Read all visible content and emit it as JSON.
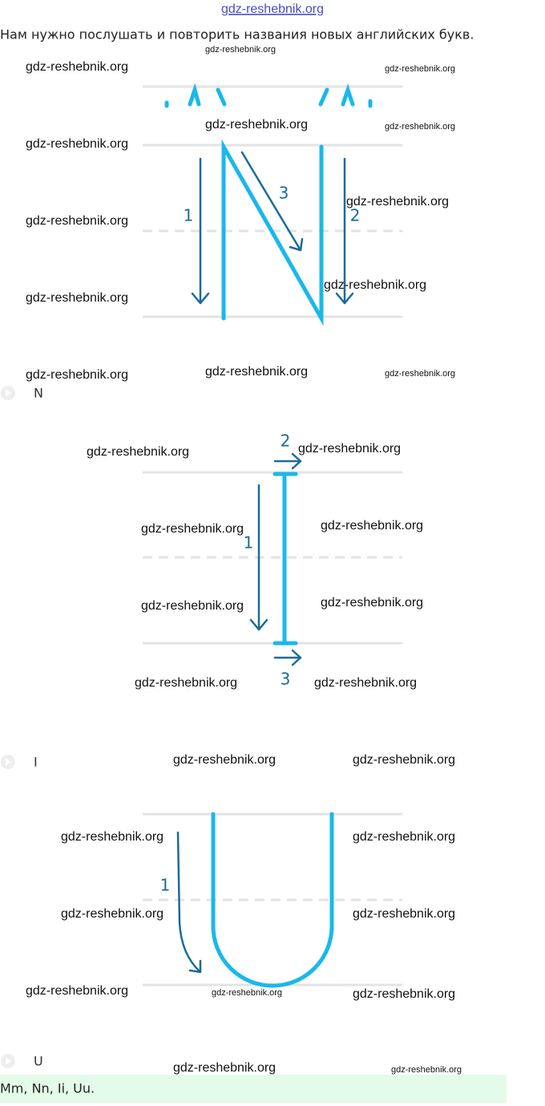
{
  "header": {
    "link": "gdz-reshebnik.org"
  },
  "instruction": "Нам нужно послушать и повторить названия новых английских букв.",
  "letters": [
    {
      "caption": "N",
      "steps": [
        "1",
        "2",
        "3"
      ]
    },
    {
      "caption": "I",
      "steps": [
        "1",
        "2",
        "3"
      ]
    },
    {
      "caption": "U",
      "steps": [
        "1"
      ]
    }
  ],
  "answer": "Mm, Nn, Ii, Uu.",
  "watermarks": [
    "gdz-reshebnik.org",
    "gdz-reshebnik.org",
    "gdz-reshebnik.org",
    "gdz-reshebnik.org",
    "gdz-reshebnik.org",
    "gdz-reshebnik.org",
    "gdz-reshebnik.org",
    "gdz-reshebnik.org",
    "gdz-reshebnik.org",
    "gdz-reshebnik.org",
    "gdz-reshebnik.org",
    "gdz-reshebnik.org",
    "gdz-reshebnik.org",
    "gdz-reshebnik.org",
    "gdz-reshebnik.org",
    "gdz-reshebnik.org",
    "gdz-reshebnik.org",
    "gdz-reshebnik.org",
    "gdz-reshebnik.org",
    "gdz-reshebnik.org",
    "gdz-reshebnik.org",
    "gdz-reshebnik.org",
    "gdz-reshebnik.org",
    "gdz-reshebnik.org",
    "gdz-reshebnik.org",
    "gdz-reshebnik.org",
    "gdz-reshebnik.org",
    "gdz-reshebnik.org",
    "gdz-reshebnik.org",
    "gdz-reshebnik.org",
    "gdz-reshebnik.org",
    "gdz-reshebnik.org"
  ]
}
